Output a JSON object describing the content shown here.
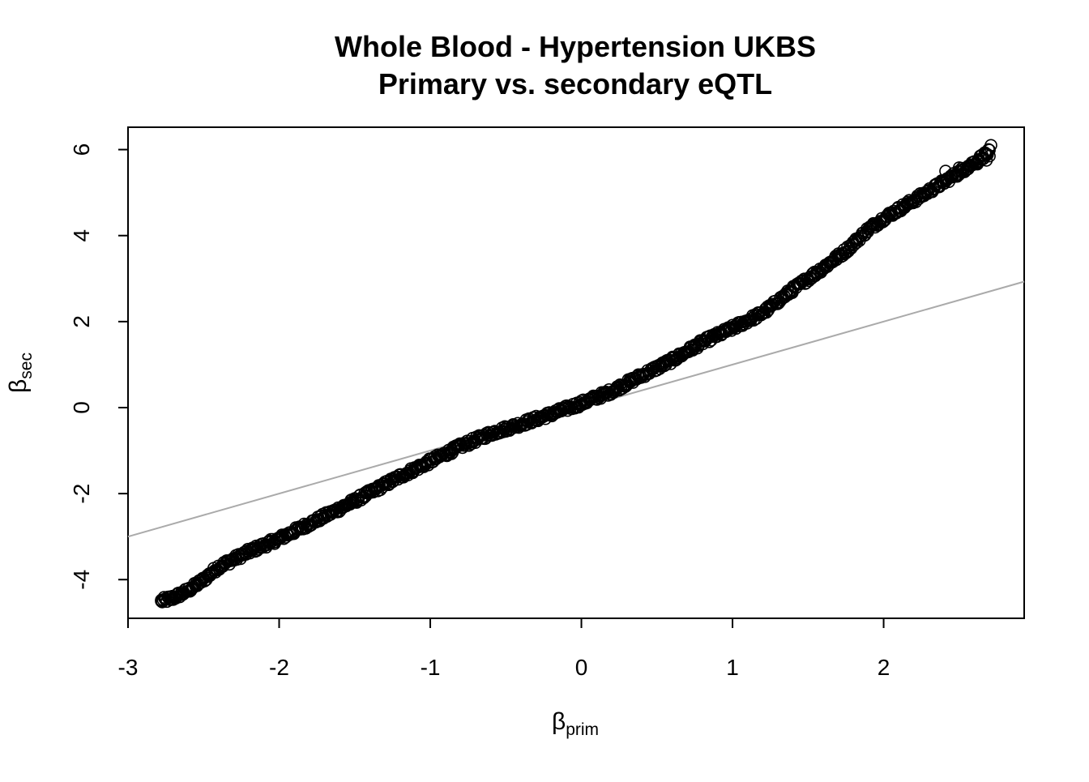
{
  "chart_data": {
    "type": "scatter",
    "title": "Whole Blood - Hypertension UKBS",
    "subtitle": "Primary vs. secondary eQTL",
    "xlabel": {
      "symbol": "β",
      "subscript": "prim"
    },
    "ylabel": {
      "symbol": "β",
      "subscript": "sec"
    },
    "xlim": [
      -3,
      2.93
    ],
    "ylim": [
      -4.9,
      6.52
    ],
    "xticks": [
      -3,
      -2,
      -1,
      0,
      1,
      2
    ],
    "yticks": [
      -4,
      -2,
      0,
      2,
      4,
      6
    ],
    "xtick_labels": [
      "-3",
      "-2",
      "-1",
      "0",
      "1",
      "2"
    ],
    "ytick_labels": [
      "-4",
      "-2",
      "0",
      "2",
      "4",
      "6"
    ],
    "reference_line": {
      "slope": 1,
      "intercept": 0,
      "color": "#aaaaaa"
    },
    "marker": {
      "shape": "open-circle",
      "color": "#000000"
    },
    "grid": false,
    "legend": "none",
    "curve_points": [
      [
        -2.78,
        -4.5
      ],
      [
        -2.7,
        -4.42
      ],
      [
        -2.6,
        -4.25
      ],
      [
        -2.5,
        -4.0
      ],
      [
        -2.4,
        -3.7
      ],
      [
        -2.2,
        -3.35
      ],
      [
        -2.0,
        -3.05
      ],
      [
        -1.8,
        -2.7
      ],
      [
        -1.6,
        -2.35
      ],
      [
        -1.4,
        -1.98
      ],
      [
        -1.2,
        -1.6
      ],
      [
        -1.0,
        -1.25
      ],
      [
        -0.8,
        -0.9
      ],
      [
        -0.6,
        -0.6
      ],
      [
        -0.4,
        -0.38
      ],
      [
        -0.2,
        -0.15
      ],
      [
        0.0,
        0.1
      ],
      [
        0.2,
        0.38
      ],
      [
        0.4,
        0.75
      ],
      [
        0.6,
        1.1
      ],
      [
        0.8,
        1.52
      ],
      [
        1.0,
        1.85
      ],
      [
        1.2,
        2.2
      ],
      [
        1.4,
        2.75
      ],
      [
        1.6,
        3.25
      ],
      [
        1.75,
        3.65
      ],
      [
        1.9,
        4.15
      ],
      [
        2.0,
        4.4
      ],
      [
        2.2,
        4.82
      ],
      [
        2.4,
        5.25
      ],
      [
        2.55,
        5.58
      ],
      [
        2.7,
        5.95
      ]
    ],
    "outlier_points": [
      [
        -2.78,
        -4.5
      ],
      [
        -2.72,
        -4.47
      ],
      [
        -2.68,
        -4.4
      ],
      [
        -2.64,
        -4.35
      ],
      [
        2.41,
        5.5
      ],
      [
        2.5,
        5.58
      ],
      [
        2.56,
        5.62
      ],
      [
        2.62,
        5.66
      ],
      [
        2.68,
        5.75
      ],
      [
        2.7,
        5.85
      ],
      [
        2.71,
        6.1
      ]
    ],
    "n_points": 900
  }
}
